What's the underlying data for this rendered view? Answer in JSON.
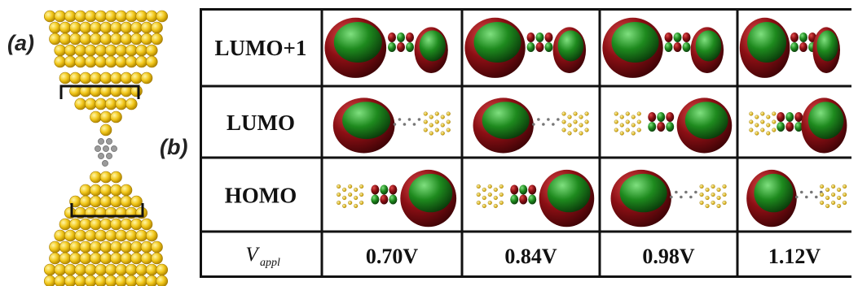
{
  "figure": {
    "panel_a_label": "(a)",
    "panel_b_label": "(b)"
  },
  "table": {
    "row_labels": [
      "LUMO+1",
      "LUMO",
      "HOMO"
    ],
    "voltage_label_main": "V",
    "voltage_label_sub": "appl",
    "voltages": [
      "0.70V",
      "0.84V",
      "0.98V",
      "1.12V"
    ],
    "lobe_sides": {
      "LUMO+1": [
        "left",
        "left",
        "left",
        "left"
      ],
      "LUMO": [
        "left",
        "left",
        "right",
        "right"
      ],
      "HOMO": [
        "right",
        "right",
        "left",
        "left"
      ]
    }
  },
  "colors": {
    "gold_atom": "#f2c81c",
    "gold_atom_dark": "#b58a00",
    "orbital_red": "#8b0f14",
    "orbital_green": "#1e8a1e",
    "carbon_gray": "#9a9a9a"
  }
}
